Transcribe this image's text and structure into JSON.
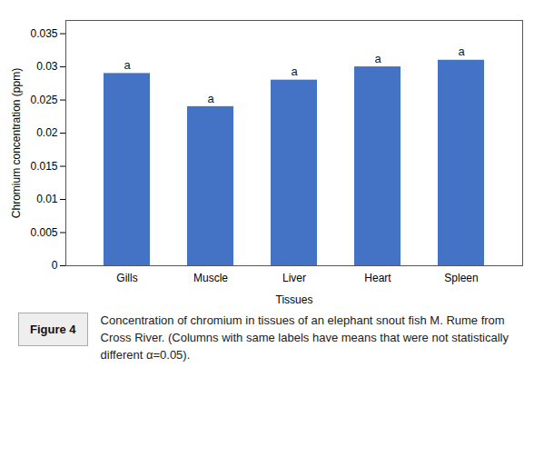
{
  "chart_data": {
    "type": "bar",
    "categories": [
      "Gills",
      "Muscle",
      "Liver",
      "Heart",
      "Spleen"
    ],
    "values": [
      0.029,
      0.024,
      0.028,
      0.03,
      0.031
    ],
    "color": "#4472C4",
    "xlabel": "Tissues",
    "ylabel": "Chromium concentration (ppm)",
    "ylim": [
      0,
      0.037
    ],
    "yticks": [
      0,
      0.005,
      0.01,
      0.015,
      0.02,
      0.025,
      0.03,
      0.035
    ],
    "grid": false,
    "annotations": [
      {
        "x": "Gills",
        "text": "a"
      },
      {
        "x": "Muscle",
        "text": "a"
      },
      {
        "x": "Liver",
        "text": "a"
      },
      {
        "x": "Heart",
        "text": "a"
      },
      {
        "x": "Spleen",
        "text": "a"
      }
    ],
    "figure_label": "Figure 4",
    "caption": "Concentration of chromium in tissues of an elephant snout fish M. Rume from Cross River. (Columns with same labels have means that were not statistically different α=0.05)."
  }
}
